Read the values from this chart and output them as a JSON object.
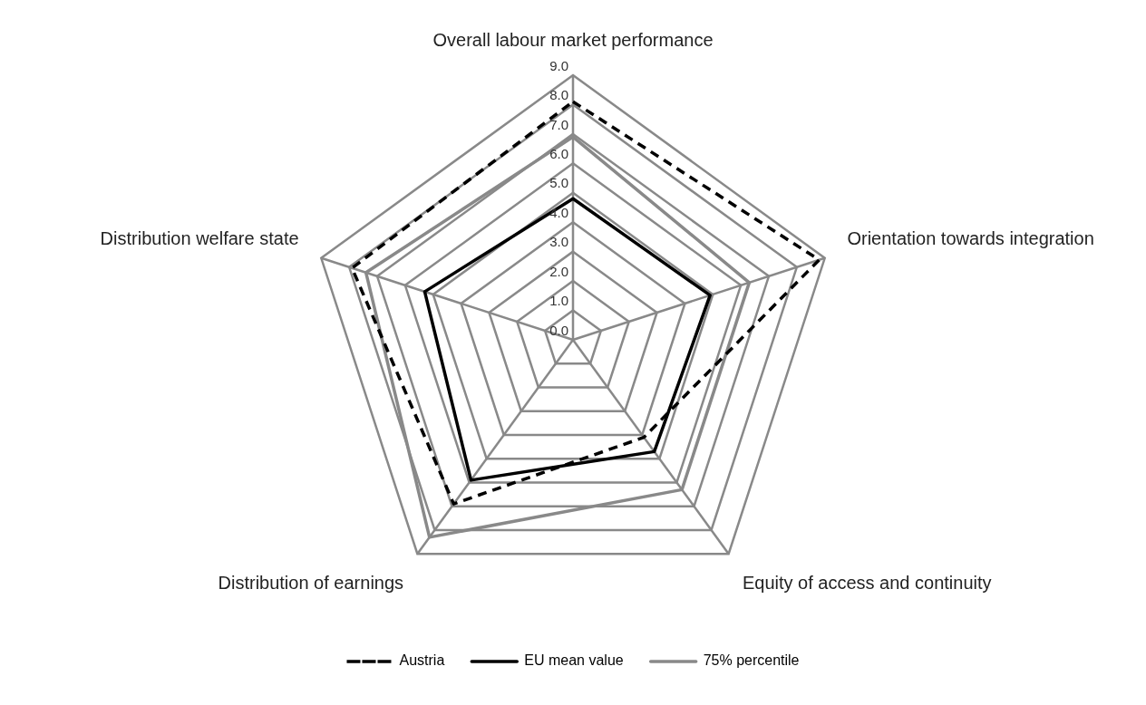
{
  "chart_data": {
    "type": "radar",
    "categories": [
      "Overall labour market performance",
      "Orientation towards integration",
      "Equity of access and continuity",
      "Distribution of earnings",
      "Distribution welfare state"
    ],
    "series": [
      {
        "name": "Austria",
        "color": "#000000",
        "line_style": "dashed",
        "values": [
          8.1,
          8.8,
          4.1,
          6.9,
          7.9
        ]
      },
      {
        "name": "EU mean value",
        "color": "#000000",
        "line_style": "solid",
        "values": [
          4.8,
          4.9,
          4.7,
          5.9,
          5.3
        ]
      },
      {
        "name": "75% percentile",
        "color": "#898989",
        "line_style": "solid",
        "values": [
          6.9,
          6.3,
          6.3,
          8.3,
          7.4
        ]
      }
    ],
    "ylim": [
      0,
      9
    ],
    "yticks": [
      {
        "value": 0,
        "label": "0.0"
      },
      {
        "value": 1,
        "label": "1.0"
      },
      {
        "value": 2,
        "label": "2.0"
      },
      {
        "value": 3,
        "label": "3.0"
      },
      {
        "value": 4,
        "label": "4.0"
      },
      {
        "value": 5,
        "label": "5.0"
      },
      {
        "value": 6,
        "label": "6.0"
      },
      {
        "value": 7,
        "label": "7.0"
      },
      {
        "value": 8,
        "label": "8.0"
      },
      {
        "value": 9,
        "label": "9.0"
      }
    ],
    "grid": true,
    "legend": "bottom",
    "marker": "none"
  }
}
